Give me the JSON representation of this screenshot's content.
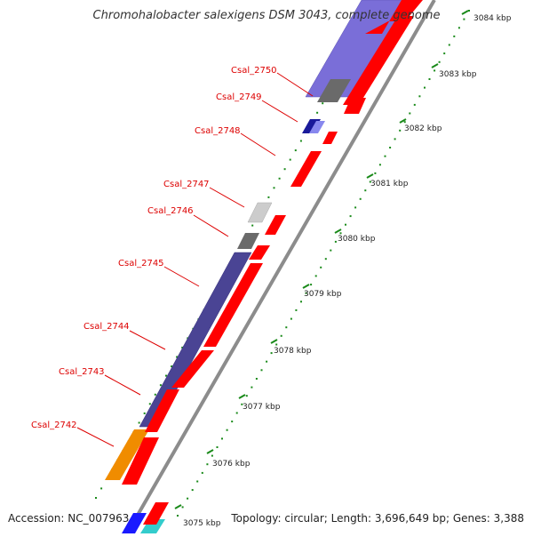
{
  "title": "Chromohalobacter salexigens DSM 3043, complete genome",
  "footer": {
    "accession": "Accession: NC_007963",
    "topology": "Topology: circular; Length: 3,696,649 bp; Genes: 3,388"
  },
  "genes": [
    {
      "name": "Csal_2750"
    },
    {
      "name": "Csal_2749"
    },
    {
      "name": "Csal_2748"
    },
    {
      "name": "Csal_2747"
    },
    {
      "name": "Csal_2746"
    },
    {
      "name": "Csal_2745"
    },
    {
      "name": "Csal_2744"
    },
    {
      "name": "Csal_2743"
    },
    {
      "name": "Csal_2742"
    }
  ],
  "scale": [
    {
      "label": "3084 kbp"
    },
    {
      "label": "3083 kbp"
    },
    {
      "label": "3082 kbp"
    },
    {
      "label": "3081 kbp"
    },
    {
      "label": "3080 kbp"
    },
    {
      "label": "3079 kbp"
    },
    {
      "label": "3078 kbp"
    },
    {
      "label": "3077 kbp"
    },
    {
      "label": "3076 kbp"
    },
    {
      "label": "3075 kbp"
    }
  ],
  "colors": {
    "label": "#dd0000",
    "tick": "#1a8a1a",
    "cds": "#ff0000",
    "backbone": "#888888"
  }
}
